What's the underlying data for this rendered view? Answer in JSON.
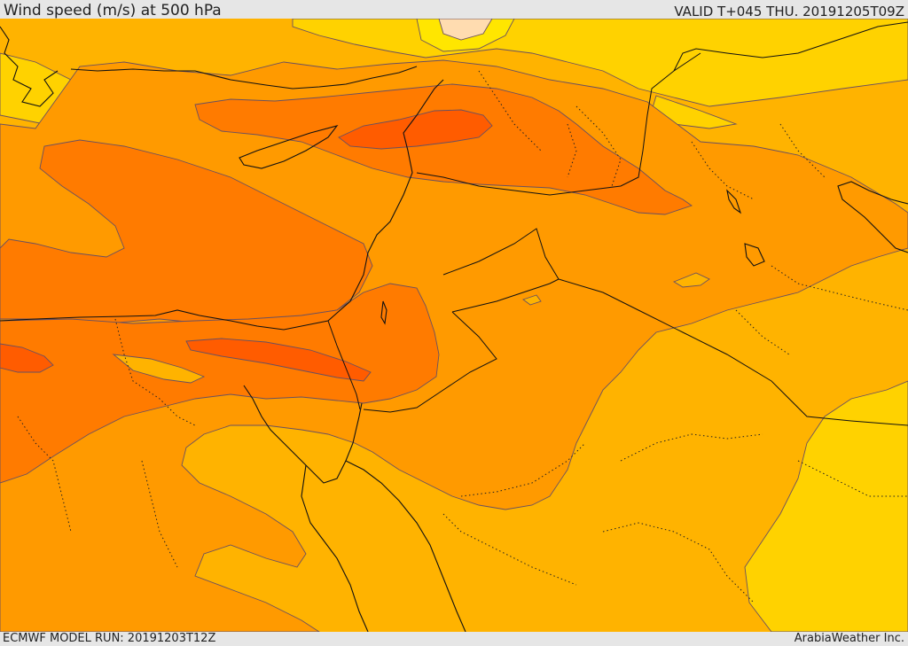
{
  "header": {
    "title": "Wind speed (m/s) at 500 hPa",
    "valid": "VALID T+045 THU. 20191205T09Z"
  },
  "footer": {
    "model_run": "ECMWF MODEL RUN: 20191203T12Z",
    "credit": "ArabiaWeather Inc."
  },
  "map": {
    "variable": "wind speed",
    "level": "500 hPa",
    "colors": {
      "very_light": "#ffdcb0",
      "light_yellow": "#ffe000",
      "yellow": "#ffd200",
      "orange_light": "#ffb300",
      "orange": "#ff9a00",
      "orange_strong": "#ff7b00",
      "orange_dark": "#ff5c00",
      "coastline": "#111111",
      "contour": "#6a5060"
    }
  }
}
